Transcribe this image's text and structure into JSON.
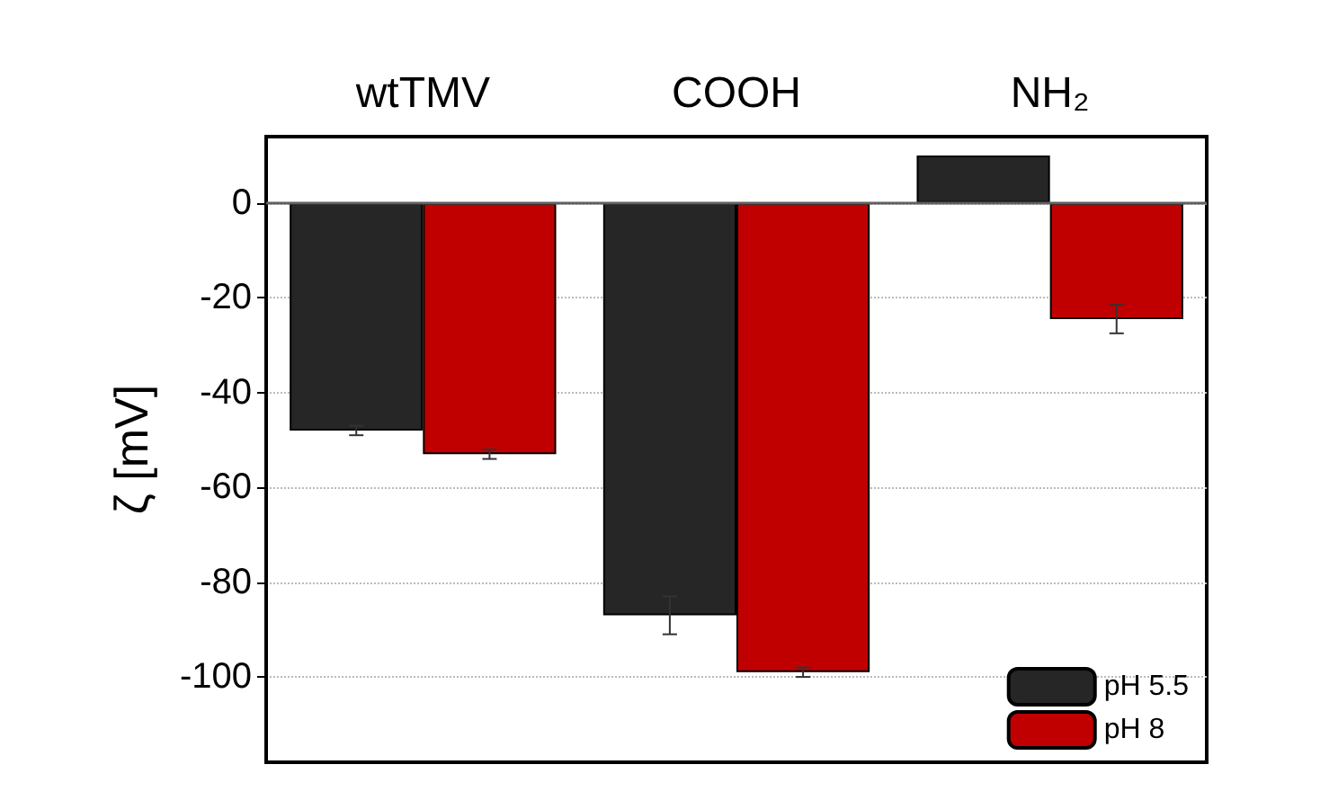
{
  "chart_data": {
    "type": "bar",
    "ylabel": "ζ [mV]",
    "categories": [
      "wtTMV",
      "COOH",
      "NH₂"
    ],
    "series": [
      {
        "name": "pH 5.5",
        "color": "#262626",
        "values": [
          -48,
          -87,
          10
        ],
        "errors": [
          1,
          4,
          null
        ]
      },
      {
        "name": "pH 8",
        "color": "#c00000",
        "values": [
          -53,
          -99,
          -24.5
        ],
        "errors": [
          1,
          1,
          3
        ]
      }
    ],
    "ylim": [
      -118,
      14
    ],
    "yticks": [
      0,
      -20,
      -40,
      -60,
      -80,
      -100
    ],
    "grid": "y",
    "legend": "bottom right",
    "ref_lines": [
      {
        "axis": "y",
        "value": 0,
        "color": "#606060"
      }
    ]
  }
}
